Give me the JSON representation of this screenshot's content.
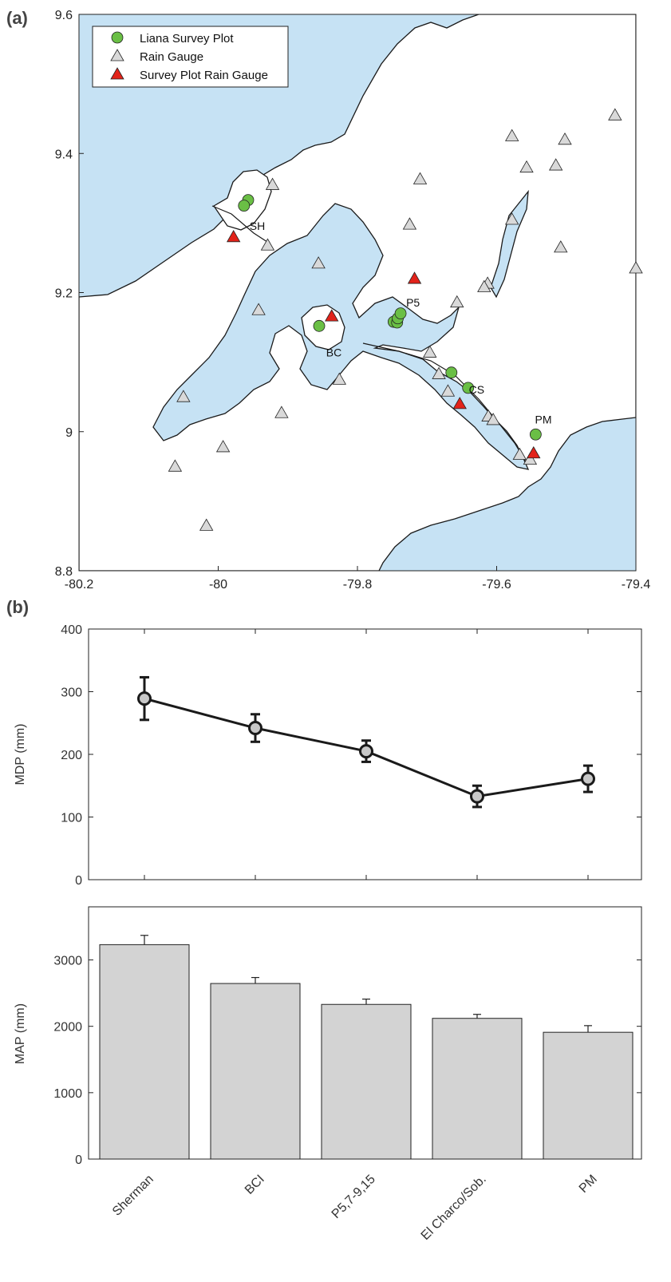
{
  "panel_a": {
    "label": "(a)",
    "legend": {
      "liana": "Liana Survey Plot",
      "gauge": "Rain Gauge",
      "plot_gauge": "Survey Plot Rain Gauge"
    },
    "site_labels": [
      {
        "text": "SH",
        "x": -79.955,
        "y": 9.29
      },
      {
        "text": "P5",
        "x": -79.73,
        "y": 9.18
      },
      {
        "text": "BC",
        "x": -79.845,
        "y": 9.108
      },
      {
        "text": "CS",
        "x": -79.64,
        "y": 9.055
      },
      {
        "text": "PM",
        "x": -79.545,
        "y": 9.012
      }
    ]
  },
  "panel_b": {
    "label": "(b)"
  },
  "colors": {
    "water": "#c6e2f4",
    "land": "#ffffff",
    "coast": "#1a1a1a",
    "liana": "#6abf45",
    "gauge": "#d9d9d9",
    "plot_gauge": "#e2231a",
    "bar": "#d3d3d3",
    "line": "#1a1a1a"
  },
  "chart_data": [
    {
      "type": "scatter",
      "title": "",
      "xlim": [
        -80.2,
        -79.4
      ],
      "ylim": [
        8.8,
        9.6
      ],
      "xticks": [
        -80.2,
        -80,
        -79.8,
        -79.6,
        -79.4
      ],
      "xtick_labels": [
        "-80.2",
        "-80",
        "-79.8",
        "-79.6",
        "-79.4"
      ],
      "yticks": [
        8.8,
        9,
        9.2,
        9.4,
        9.6
      ],
      "ytick_labels": [
        "8.8",
        "9",
        "9.2",
        "9.4",
        "9.6"
      ],
      "grid": false,
      "legend_position": "top-left",
      "series": [
        {
          "name": "Liana Survey Plot",
          "points": [
            [
              -79.957,
              9.333
            ],
            [
              -79.963,
              9.325
            ],
            [
              -79.855,
              9.152
            ],
            [
              -79.748,
              9.158
            ],
            [
              -79.743,
              9.157
            ],
            [
              -79.742,
              9.163
            ],
            [
              -79.738,
              9.17
            ],
            [
              -79.665,
              9.085
            ],
            [
              -79.641,
              9.063
            ],
            [
              -79.544,
              8.996
            ]
          ]
        },
        {
          "name": "Rain Gauge",
          "points": [
            [
              -79.43,
              9.455
            ],
            [
              -79.578,
              9.425
            ],
            [
              -79.502,
              9.42
            ],
            [
              -79.557,
              9.38
            ],
            [
              -79.515,
              9.383
            ],
            [
              -79.71,
              9.363
            ],
            [
              -79.922,
              9.355
            ],
            [
              -79.578,
              9.305
            ],
            [
              -79.725,
              9.298
            ],
            [
              -79.929,
              9.268
            ],
            [
              -79.508,
              9.265
            ],
            [
              -79.856,
              9.242
            ],
            [
              -79.4,
              9.235
            ],
            [
              -79.613,
              9.213
            ],
            [
              -79.618,
              9.208
            ],
            [
              -79.657,
              9.186
            ],
            [
              -79.942,
              9.175
            ],
            [
              -79.696,
              9.114
            ],
            [
              -79.683,
              9.083
            ],
            [
              -79.826,
              9.075
            ],
            [
              -79.67,
              9.058
            ],
            [
              -80.05,
              9.05
            ],
            [
              -79.909,
              9.027
            ],
            [
              -79.612,
              9.022
            ],
            [
              -79.605,
              9.017
            ],
            [
              -79.993,
              8.978
            ],
            [
              -79.567,
              8.967
            ],
            [
              -79.552,
              8.96
            ],
            [
              -80.062,
              8.95
            ],
            [
              -80.017,
              8.865
            ]
          ]
        },
        {
          "name": "Survey Plot Rain Gauge",
          "points": [
            [
              -79.978,
              9.28
            ],
            [
              -79.837,
              9.166
            ],
            [
              -79.718,
              9.22
            ],
            [
              -79.653,
              9.04
            ],
            [
              -79.547,
              8.969
            ]
          ]
        }
      ]
    },
    {
      "type": "line",
      "title": "",
      "xlabel": "",
      "ylabel": "MDP (mm)",
      "ylim": [
        0,
        400
      ],
      "yticks": [
        0,
        100,
        200,
        300,
        400
      ],
      "categories": [
        "Sherman",
        "BCI",
        "P5,7-9,15",
        "El Charco/Sob.",
        "PM"
      ],
      "values": [
        289,
        242,
        205,
        133,
        161
      ],
      "errors": [
        34,
        22,
        17,
        17,
        21
      ],
      "grid": false
    },
    {
      "type": "bar",
      "title": "",
      "xlabel": "",
      "ylabel": "MAP (mm)",
      "ylim": [
        0,
        3800
      ],
      "yticks": [
        0,
        1000,
        2000,
        3000
      ],
      "categories": [
        "Sherman",
        "BCI",
        "P5,7-9,15",
        "El Charco/Sob.",
        "PM"
      ],
      "values": [
        3230,
        2645,
        2330,
        2120,
        1910
      ],
      "errors": [
        140,
        90,
        80,
        60,
        100
      ],
      "grid": false
    }
  ]
}
